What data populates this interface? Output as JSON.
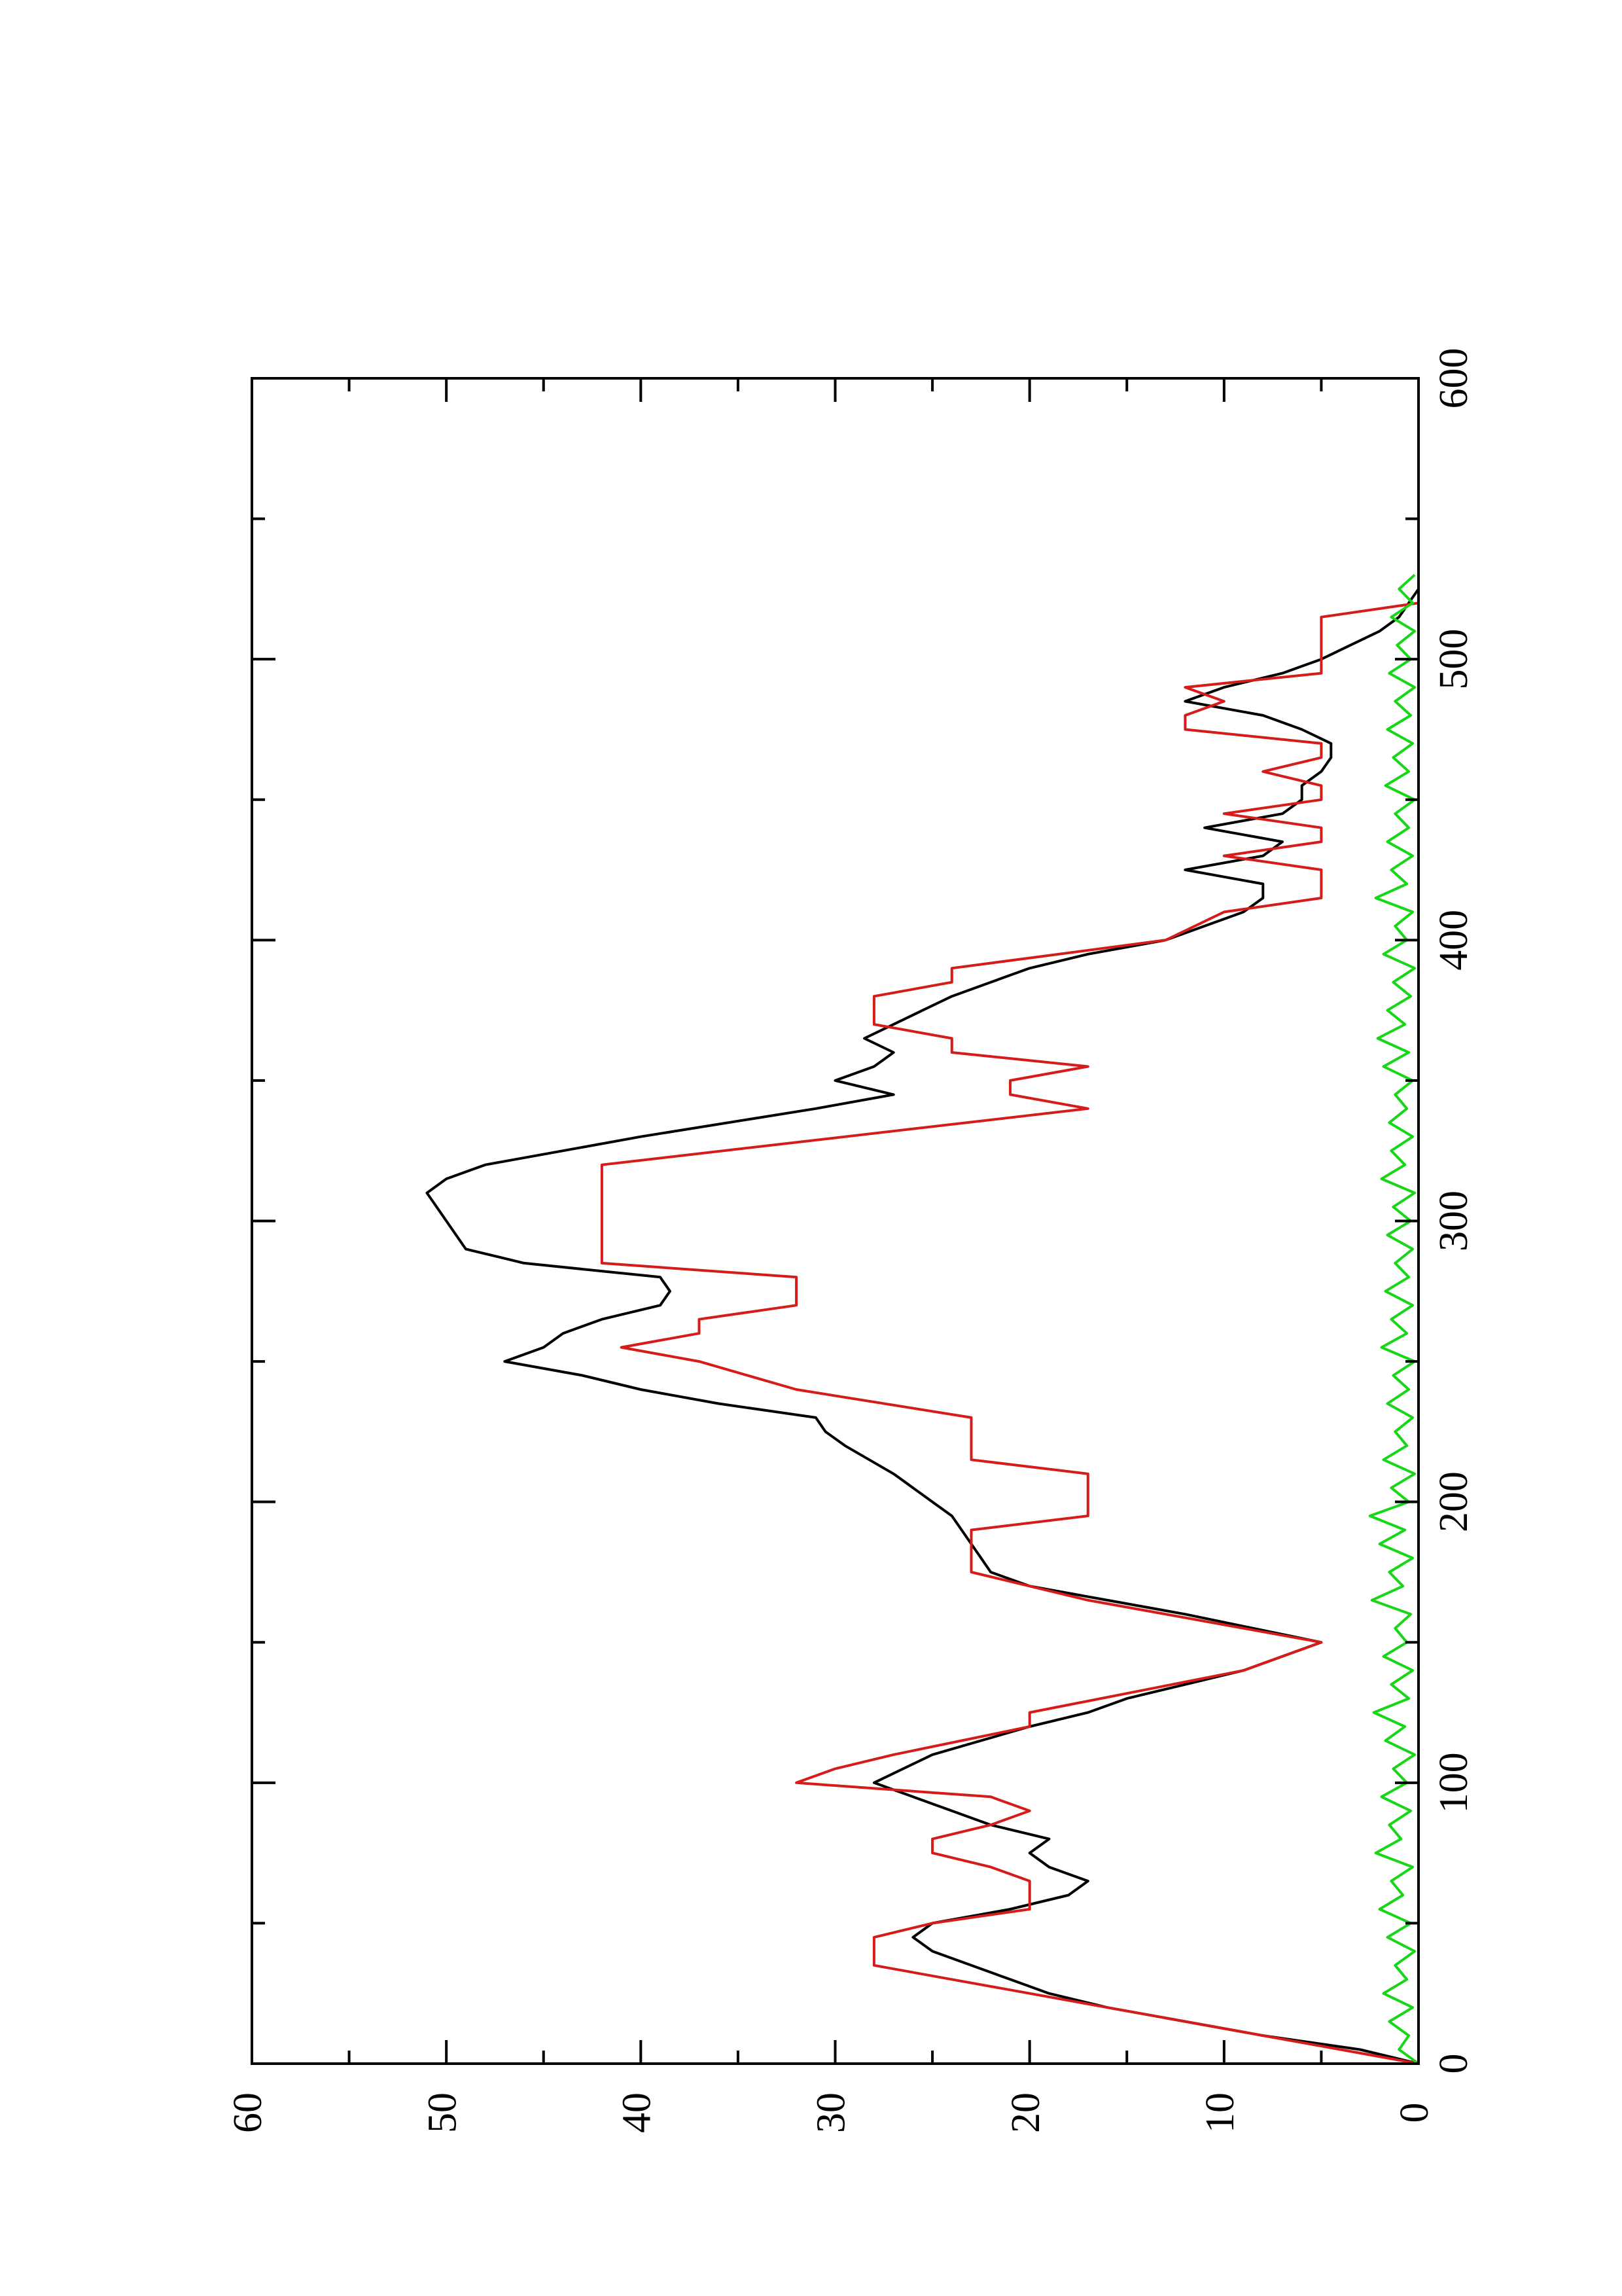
{
  "chart_data": {
    "type": "line",
    "orientation": "rotated-90-ccw",
    "title": "",
    "xlabel": "",
    "ylabel": "",
    "xlim": [
      0,
      600
    ],
    "ylim": [
      0,
      60
    ],
    "x_ticks": [
      0,
      100,
      200,
      300,
      400,
      500,
      600
    ],
    "x_minor_ticks": [
      50,
      150,
      250,
      350,
      450,
      550
    ],
    "y_ticks": [
      0,
      10,
      20,
      30,
      40,
      50,
      60
    ],
    "y_minor_ticks": [
      5,
      15,
      25,
      35,
      45,
      55
    ],
    "x_tick_labels": [
      "0",
      "100",
      "200",
      "300",
      "400",
      "500",
      "600"
    ],
    "y_tick_labels": [
      "0",
      "10",
      "20",
      "30",
      "40",
      "50",
      "60"
    ],
    "grid": false,
    "legend": "none",
    "series": [
      {
        "color": "#000000",
        "points": [
          [
            0,
            0
          ],
          [
            5,
            3
          ],
          [
            10,
            8
          ],
          [
            15,
            12
          ],
          [
            20,
            16
          ],
          [
            25,
            19
          ],
          [
            30,
            21
          ],
          [
            35,
            23
          ],
          [
            40,
            25
          ],
          [
            45,
            26
          ],
          [
            50,
            25
          ],
          [
            55,
            21
          ],
          [
            60,
            18
          ],
          [
            65,
            17
          ],
          [
            70,
            19
          ],
          [
            75,
            20
          ],
          [
            80,
            19
          ],
          [
            85,
            22
          ],
          [
            90,
            24
          ],
          [
            95,
            26
          ],
          [
            100,
            28
          ],
          [
            110,
            25
          ],
          [
            120,
            20
          ],
          [
            125,
            17
          ],
          [
            130,
            15
          ],
          [
            140,
            9
          ],
          [
            150,
            5
          ],
          [
            160,
            12
          ],
          [
            165,
            16
          ],
          [
            170,
            20
          ],
          [
            175,
            22
          ],
          [
            180,
            22.5
          ],
          [
            185,
            23
          ],
          [
            190,
            23.5
          ],
          [
            195,
            24
          ],
          [
            200,
            25
          ],
          [
            210,
            27
          ],
          [
            220,
            29.5
          ],
          [
            225,
            30.5
          ],
          [
            230,
            31
          ],
          [
            235,
            36
          ],
          [
            240,
            40
          ],
          [
            245,
            43
          ],
          [
            250,
            47
          ],
          [
            255,
            45
          ],
          [
            260,
            44
          ],
          [
            265,
            42
          ],
          [
            270,
            39
          ],
          [
            275,
            38.5
          ],
          [
            280,
            39
          ],
          [
            285,
            46
          ],
          [
            290,
            49
          ],
          [
            300,
            50
          ],
          [
            310,
            51
          ],
          [
            315,
            50
          ],
          [
            320,
            48
          ],
          [
            330,
            40
          ],
          [
            340,
            31
          ],
          [
            345,
            27
          ],
          [
            350,
            30
          ],
          [
            355,
            28
          ],
          [
            360,
            27
          ],
          [
            365,
            28.5
          ],
          [
            370,
            27
          ],
          [
            375,
            25.5
          ],
          [
            380,
            24
          ],
          [
            385,
            22
          ],
          [
            390,
            20
          ],
          [
            395,
            17
          ],
          [
            400,
            13
          ],
          [
            410,
            9
          ],
          [
            415,
            8
          ],
          [
            420,
            8
          ],
          [
            425,
            12
          ],
          [
            430,
            8
          ],
          [
            435,
            7
          ],
          [
            440,
            11
          ],
          [
            445,
            7
          ],
          [
            450,
            6
          ],
          [
            455,
            6
          ],
          [
            460,
            5
          ],
          [
            465,
            4.5
          ],
          [
            470,
            4.5
          ],
          [
            475,
            6
          ],
          [
            480,
            8
          ],
          [
            485,
            12
          ],
          [
            490,
            10
          ],
          [
            495,
            7
          ],
          [
            500,
            5
          ],
          [
            505,
            3.5
          ],
          [
            510,
            2
          ],
          [
            515,
            1
          ],
          [
            520,
            0.5
          ],
          [
            525,
            0
          ]
        ]
      },
      {
        "color": "#d61b1b",
        "points": [
          [
            0,
            0
          ],
          [
            10,
            8
          ],
          [
            15,
            12
          ],
          [
            20,
            16
          ],
          [
            25,
            20
          ],
          [
            30,
            24
          ],
          [
            35,
            28
          ],
          [
            45,
            28
          ],
          [
            50,
            25
          ],
          [
            55,
            20
          ],
          [
            60,
            20
          ],
          [
            65,
            20
          ],
          [
            70,
            22
          ],
          [
            75,
            25
          ],
          [
            80,
            25
          ],
          [
            85,
            22
          ],
          [
            90,
            20
          ],
          [
            95,
            22
          ],
          [
            100,
            32
          ],
          [
            105,
            30
          ],
          [
            110,
            27
          ],
          [
            120,
            20
          ],
          [
            125,
            20
          ],
          [
            140,
            9
          ],
          [
            150,
            5
          ],
          [
            160,
            13
          ],
          [
            165,
            17
          ],
          [
            170,
            20
          ],
          [
            175,
            23
          ],
          [
            190,
            23
          ],
          [
            195,
            17
          ],
          [
            210,
            17
          ],
          [
            215,
            23
          ],
          [
            230,
            23
          ],
          [
            240,
            32
          ],
          [
            250,
            37
          ],
          [
            255,
            41
          ],
          [
            260,
            37
          ],
          [
            265,
            37
          ],
          [
            270,
            32
          ],
          [
            280,
            32
          ],
          [
            285,
            42
          ],
          [
            320,
            42
          ],
          [
            340,
            17
          ],
          [
            345,
            21
          ],
          [
            350,
            21
          ],
          [
            355,
            17
          ],
          [
            360,
            24
          ],
          [
            365,
            24
          ],
          [
            370,
            28
          ],
          [
            380,
            28
          ],
          [
            385,
            24
          ],
          [
            390,
            24
          ],
          [
            400,
            13
          ],
          [
            410,
            10
          ],
          [
            415,
            5
          ],
          [
            425,
            5
          ],
          [
            430,
            10
          ],
          [
            435,
            5
          ],
          [
            440,
            5
          ],
          [
            445,
            10
          ],
          [
            450,
            5
          ],
          [
            455,
            5
          ],
          [
            460,
            8
          ],
          [
            465,
            5
          ],
          [
            470,
            5
          ],
          [
            475,
            12
          ],
          [
            480,
            12
          ],
          [
            485,
            10
          ],
          [
            490,
            12
          ],
          [
            495,
            5
          ],
          [
            500,
            5
          ],
          [
            505,
            5
          ],
          [
            515,
            5
          ],
          [
            520,
            0
          ],
          [
            528,
            0
          ]
        ]
      },
      {
        "color": "#17d617",
        "points": [
          [
            0,
            0
          ],
          [
            5,
            1
          ],
          [
            10,
            0.5
          ],
          [
            15,
            1.5
          ],
          [
            20,
            0.3
          ],
          [
            25,
            1.8
          ],
          [
            30,
            0.6
          ],
          [
            35,
            1.2
          ],
          [
            40,
            0.2
          ],
          [
            45,
            1.6
          ],
          [
            50,
            0.4
          ],
          [
            55,
            2
          ],
          [
            60,
            0.8
          ],
          [
            65,
            1.4
          ],
          [
            70,
            0.3
          ],
          [
            75,
            2.2
          ],
          [
            80,
            0.9
          ],
          [
            85,
            1.5
          ],
          [
            90,
            0.4
          ],
          [
            95,
            1.9
          ],
          [
            100,
            0.6
          ],
          [
            105,
            1.3
          ],
          [
            110,
            0.2
          ],
          [
            115,
            1.7
          ],
          [
            120,
            0.7
          ],
          [
            125,
            2.3
          ],
          [
            130,
            0.5
          ],
          [
            135,
            1.4
          ],
          [
            140,
            0.3
          ],
          [
            145,
            1.8
          ],
          [
            150,
            0.6
          ],
          [
            155,
            1.2
          ],
          [
            160,
            0.4
          ],
          [
            165,
            2.4
          ],
          [
            170,
            0.8
          ],
          [
            175,
            1.5
          ],
          [
            180,
            0.3
          ],
          [
            185,
            2
          ],
          [
            190,
            0.7
          ],
          [
            195,
            2.5
          ],
          [
            200,
            0.5
          ],
          [
            205,
            1.4
          ],
          [
            210,
            0.2
          ],
          [
            215,
            1.8
          ],
          [
            220,
            0.6
          ],
          [
            225,
            1.2
          ],
          [
            230,
            0.3
          ],
          [
            235,
            1.6
          ],
          [
            240,
            0.5
          ],
          [
            245,
            1.3
          ],
          [
            250,
            0.2
          ],
          [
            255,
            1.9
          ],
          [
            260,
            0.6
          ],
          [
            265,
            1.4
          ],
          [
            270,
            0.3
          ],
          [
            275,
            1.7
          ],
          [
            280,
            0.5
          ],
          [
            285,
            1.2
          ],
          [
            290,
            0.3
          ],
          [
            295,
            1.6
          ],
          [
            300,
            0.4
          ],
          [
            305,
            1.3
          ],
          [
            310,
            0.2
          ],
          [
            315,
            1.9
          ],
          [
            320,
            0.7
          ],
          [
            325,
            1.4
          ],
          [
            330,
            0.3
          ],
          [
            335,
            1.5
          ],
          [
            340,
            0.6
          ],
          [
            345,
            1.2
          ],
          [
            350,
            0.3
          ],
          [
            355,
            1.8
          ],
          [
            360,
            0.5
          ],
          [
            365,
            2.1
          ],
          [
            370,
            0.7
          ],
          [
            375,
            1.6
          ],
          [
            380,
            0.4
          ],
          [
            385,
            1.3
          ],
          [
            390,
            0.2
          ],
          [
            395,
            1.8
          ],
          [
            400,
            0.6
          ],
          [
            405,
            1.2
          ],
          [
            410,
            0.3
          ],
          [
            415,
            2.2
          ],
          [
            420,
            0.6
          ],
          [
            425,
            1.4
          ],
          [
            430,
            0.3
          ],
          [
            435,
            1.6
          ],
          [
            440,
            0.5
          ],
          [
            445,
            1.2
          ],
          [
            450,
            0.2
          ],
          [
            455,
            1.7
          ],
          [
            460,
            0.5
          ],
          [
            465,
            1.3
          ],
          [
            470,
            0.3
          ],
          [
            475,
            1.6
          ],
          [
            480,
            0.4
          ],
          [
            485,
            1.2
          ],
          [
            490,
            0.2
          ],
          [
            495,
            1.5
          ],
          [
            500,
            0.4
          ],
          [
            505,
            1.1
          ],
          [
            510,
            0.2
          ],
          [
            515,
            1.4
          ],
          [
            520,
            0.3
          ],
          [
            525,
            1
          ],
          [
            530,
            0.2
          ]
        ]
      }
    ]
  }
}
